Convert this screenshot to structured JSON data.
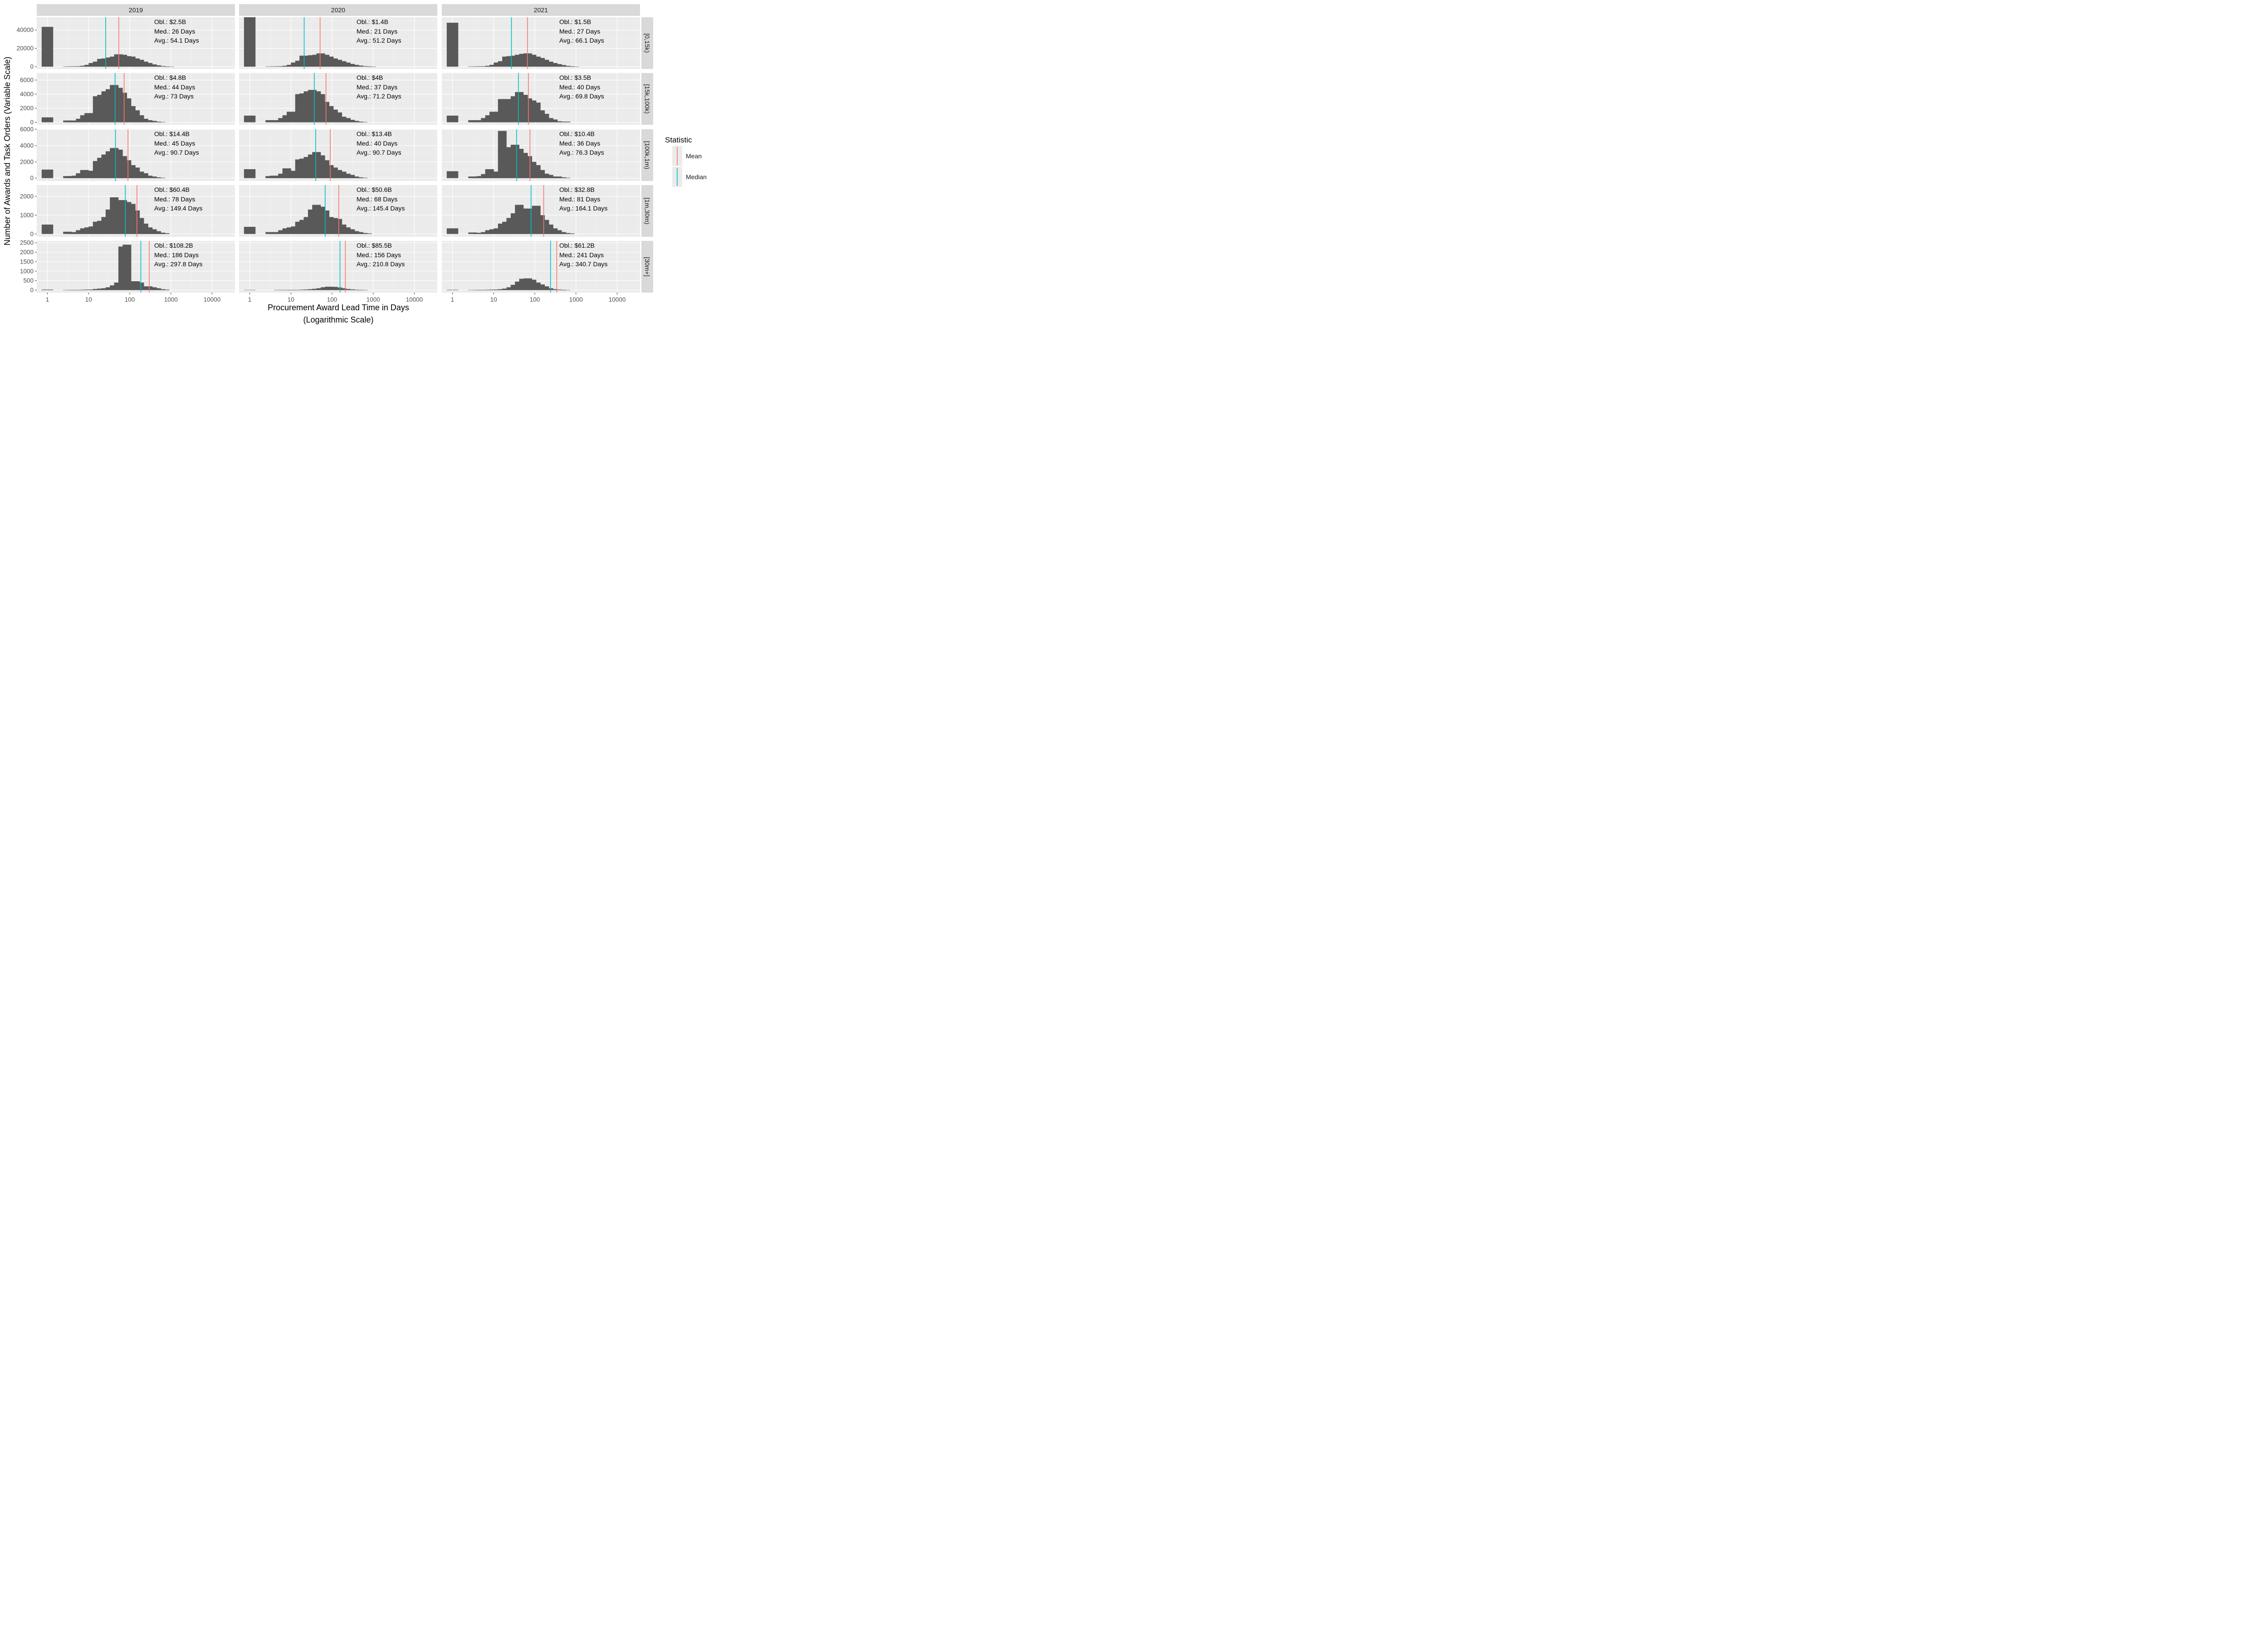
{
  "chart_data": {
    "type": "bar",
    "chart_subtype": "faceted-histogram",
    "x_scale": "log10",
    "xlabel": "Procurement Award Lead Time in Days",
    "xlabel_line2": "(Logarithmic Scale)",
    "ylabel": "Number of Awards and Task Orders (Variable Scale)",
    "xlim": [
      0.55,
      36000
    ],
    "x_ticks": [
      1,
      10,
      100,
      1000,
      10000
    ],
    "x_tick_labels": [
      "1",
      "10",
      "100",
      "1000",
      "10000"
    ],
    "columns": [
      "2019",
      "2020",
      "2021"
    ],
    "rows": [
      "[0,15k)",
      "[15k,100k)",
      "[100k,1m)",
      "[1m,30m)",
      "[30m+]"
    ],
    "bin_centers": [
      1,
      1.91,
      2.42,
      3.07,
      3.89,
      4.94,
      6.26,
      7.94,
      10.07,
      12.77,
      16.2,
      20.55,
      26.06,
      33.05,
      41.91,
      53.16,
      67.42,
      85.5,
      108.4,
      137.5,
      174.4,
      221.2,
      280.5,
      355.8,
      451.2,
      572.2,
      725.7,
      920.4,
      1167,
      1480,
      1877,
      2381,
      3020,
      3830,
      4857,
      6160,
      7813,
      9909
    ],
    "legend": {
      "title": "Statistic",
      "entries": [
        {
          "name": "Mean",
          "color": "#F8766D"
        },
        {
          "name": "Median",
          "color": "#00BFC4"
        }
      ],
      "position": "right"
    },
    "colors": {
      "bar": "#595959",
      "panel": "#EBEBEB",
      "strip": "#D9D9D9",
      "mean": "#F8766D",
      "median": "#00BFC4"
    },
    "row_axes": [
      {
        "ylim": [
          -2500,
          54000
        ],
        "ticks": [
          0,
          20000,
          40000
        ],
        "tick_labels": [
          "0",
          "20000",
          "40000"
        ]
      },
      {
        "ylim": [
          -350,
          7000
        ],
        "ticks": [
          0,
          2000,
          4000,
          6000
        ],
        "tick_labels": [
          "0",
          "2000",
          "4000",
          "6000"
        ]
      },
      {
        "ylim": [
          -350,
          6000
        ],
        "ticks": [
          0,
          2000,
          4000,
          6000
        ],
        "tick_labels": [
          "0",
          "2000",
          "4000",
          "6000"
        ]
      },
      {
        "ylim": [
          -150,
          2600
        ],
        "ticks": [
          0,
          1000,
          2000
        ],
        "tick_labels": [
          "0",
          "1000",
          "2000"
        ]
      },
      {
        "ylim": [
          -130,
          2600
        ],
        "ticks": [
          0,
          500,
          1000,
          1500,
          2000,
          2500
        ],
        "tick_labels": [
          "0",
          "500",
          "1000",
          "1500",
          "2000",
          "2500"
        ]
      }
    ],
    "panels": [
      {
        "column": "2019",
        "row": "[0,15k)",
        "obl": "Obl.: $2.5B",
        "med": "Med.: 26 Days",
        "avg": "Avg.: 54.1 Days",
        "median": 26,
        "mean": 54.1,
        "counts": [
          43500,
          0,
          0,
          200,
          300,
          400,
          500,
          1000,
          2000,
          4000,
          5500,
          8500,
          9000,
          10000,
          11000,
          13500,
          13000,
          11500,
          11000,
          9000,
          7500,
          5500,
          4000,
          2500,
          1500,
          700,
          300,
          100,
          0,
          0,
          0,
          0,
          0,
          0,
          0,
          0,
          0,
          0
        ]
      },
      {
        "column": "2020",
        "row": "[0,15k)",
        "obl": "Obl.: $1.4B",
        "med": "Med.: 21 Days",
        "avg": "Avg.: 51.2 Days",
        "median": 21,
        "mean": 51.2,
        "counts": [
          54000,
          0,
          0,
          200,
          300,
          400,
          500,
          1000,
          2000,
          4500,
          6500,
          12000,
          11500,
          12500,
          13000,
          14500,
          13000,
          11000,
          9000,
          7500,
          6000,
          4500,
          3000,
          2000,
          1200,
          600,
          300,
          100,
          0,
          0,
          0,
          0,
          0,
          0,
          0,
          0,
          0,
          0
        ]
      },
      {
        "column": "2021",
        "row": "[0,15k)",
        "obl": "Obl.: $1.5B",
        "med": "Med.: 27 Days",
        "avg": "Avg.: 66.1 Days",
        "median": 27,
        "mean": 66.1,
        "counts": [
          48000,
          0,
          0,
          200,
          300,
          400,
          500,
          1000,
          2000,
          4500,
          6000,
          11000,
          11500,
          12000,
          13000,
          14000,
          14500,
          13000,
          11000,
          9500,
          7500,
          5500,
          4000,
          2800,
          1800,
          900,
          400,
          150,
          0,
          0,
          0,
          0,
          0,
          0,
          0,
          0,
          0,
          0
        ]
      },
      {
        "column": "2019",
        "row": "[15k,100k)",
        "obl": "Obl.: $4.8B",
        "med": "Med.: 44 Days",
        "avg": "Avg.: 73 Days",
        "median": 44,
        "mean": 73,
        "counts": [
          700,
          0,
          0,
          250,
          250,
          200,
          500,
          1000,
          1300,
          1300,
          3700,
          3900,
          4400,
          4700,
          5300,
          4900,
          4200,
          3400,
          2300,
          1700,
          1000,
          500,
          300,
          200,
          100,
          50,
          0,
          0,
          0,
          0,
          0,
          0,
          0,
          0,
          0,
          0,
          0,
          0
        ]
      },
      {
        "column": "2020",
        "row": "[15k,100k)",
        "obl": "Obl.: $4B",
        "med": "Med.: 37 Days",
        "avg": "Avg.: 71.2 Days",
        "median": 37,
        "mean": 71.2,
        "counts": [
          950,
          0,
          0,
          300,
          300,
          200,
          600,
          1000,
          1500,
          1500,
          4000,
          4100,
          4400,
          4600,
          4400,
          4000,
          2900,
          2300,
          1800,
          1400,
          800,
          600,
          350,
          200,
          100,
          50,
          0,
          0,
          0,
          0,
          0,
          0,
          0,
          0,
          0,
          0,
          0,
          0
        ]
      },
      {
        "column": "2021",
        "row": "[15k,100k)",
        "obl": "Obl.: $3.5B",
        "med": "Med.: 40 Days",
        "avg": "Avg.: 69.8 Days",
        "median": 40,
        "mean": 69.8,
        "counts": [
          950,
          0,
          0,
          300,
          300,
          200,
          600,
          1000,
          1500,
          1500,
          3300,
          3300,
          3100,
          3700,
          4300,
          3900,
          3400,
          3100,
          2800,
          1700,
          1200,
          600,
          400,
          150,
          100,
          100,
          0,
          0,
          0,
          0,
          0,
          0,
          0,
          0,
          0,
          0,
          0,
          0
        ]
      },
      {
        "column": "2019",
        "row": "[100k,1m)",
        "obl": "Obl.: $14.4B",
        "med": "Med.: 45 Days",
        "avg": "Avg.: 90.7 Days",
        "median": 45,
        "mean": 90.7,
        "counts": [
          1050,
          0,
          0,
          250,
          250,
          300,
          600,
          1000,
          900,
          900,
          2100,
          2500,
          2900,
          3300,
          3700,
          3500,
          2700,
          2200,
          1600,
          1300,
          800,
          600,
          300,
          200,
          100,
          50,
          0,
          0,
          0,
          0,
          0,
          0,
          0,
          0,
          0,
          0,
          0,
          0
        ]
      },
      {
        "column": "2020",
        "row": "[100k,1m)",
        "obl": "Obl.: $13.4B",
        "med": "Med.: 40 Days",
        "avg": "Avg.: 90.7 Days",
        "median": 40,
        "mean": 90.7,
        "counts": [
          1100,
          0,
          0,
          250,
          300,
          300,
          550,
          1200,
          900,
          900,
          2300,
          2400,
          2600,
          2900,
          3200,
          2800,
          2200,
          1600,
          1300,
          1000,
          800,
          550,
          400,
          200,
          100,
          50,
          0,
          0,
          0,
          0,
          0,
          0,
          0,
          0,
          0,
          0,
          0,
          0
        ]
      },
      {
        "column": "2021",
        "row": "[100k,1m)",
        "obl": "Obl.: $10.4B",
        "med": "Med.: 36 Days",
        "avg": "Avg.: 76.3 Days",
        "median": 36,
        "mean": 76.3,
        "counts": [
          850,
          0,
          0,
          200,
          200,
          250,
          500,
          1100,
          800,
          800,
          5800,
          3400,
          3800,
          4100,
          3600,
          3100,
          2700,
          2000,
          1600,
          1000,
          550,
          400,
          200,
          200,
          100,
          50,
          0,
          0,
          0,
          0,
          0,
          0,
          0,
          0,
          0,
          0,
          0,
          0
        ]
      },
      {
        "column": "2019",
        "row": "[1m,30m)",
        "obl": "Obl.: $60.4B",
        "med": "Med.: 78 Days",
        "avg": "Avg.: 149.4 Days",
        "median": 78,
        "mean": 149.4,
        "counts": [
          500,
          0,
          0,
          120,
          80,
          100,
          200,
          300,
          350,
          400,
          650,
          700,
          900,
          1300,
          1950,
          1800,
          1800,
          1700,
          1600,
          1250,
          850,
          550,
          350,
          250,
          150,
          70,
          40,
          0,
          0,
          0,
          0,
          0,
          0,
          0,
          0,
          0,
          0,
          0
        ]
      },
      {
        "column": "2020",
        "row": "[1m,30m)",
        "obl": "Obl.: $50.6B",
        "med": "Med.: 68 Days",
        "avg": "Avg.: 145.4 Days",
        "median": 68,
        "mean": 145.4,
        "counts": [
          380,
          0,
          0,
          100,
          80,
          100,
          200,
          300,
          350,
          400,
          650,
          750,
          900,
          1300,
          1550,
          1450,
          1250,
          900,
          850,
          800,
          500,
          350,
          250,
          150,
          100,
          50,
          30,
          0,
          0,
          0,
          0,
          0,
          0,
          0,
          0,
          0,
          0,
          0
        ]
      },
      {
        "column": "2021",
        "row": "[1m,30m)",
        "obl": "Obl.: $32.8B",
        "med": "Med.: 81 Days",
        "avg": "Avg.: 164.1 Days",
        "median": 81,
        "mean": 164.1,
        "counts": [
          300,
          0,
          0,
          80,
          60,
          60,
          100,
          200,
          250,
          300,
          550,
          650,
          850,
          1100,
          1550,
          1350,
          1350,
          1300,
          1500,
          1000,
          750,
          500,
          300,
          200,
          100,
          50,
          30,
          0,
          0,
          0,
          0,
          0,
          0,
          0,
          0,
          0,
          0,
          0
        ]
      },
      {
        "column": "2019",
        "row": "[30m+]",
        "obl": "Obl.: $108.2B",
        "med": "Med.: 186 Days",
        "avg": "Avg.: 297.8 Days",
        "median": 186,
        "mean": 297.8,
        "counts": [
          30,
          0,
          0,
          5,
          5,
          10,
          10,
          20,
          30,
          30,
          60,
          80,
          100,
          150,
          250,
          400,
          2300,
          2400,
          450,
          470,
          400,
          150,
          200,
          150,
          100,
          50,
          30,
          0,
          0,
          0,
          0,
          0,
          0,
          0,
          0,
          0,
          0,
          0
        ]
      },
      {
        "column": "2020",
        "row": "[30m+]",
        "obl": "Obl.: $85.5B",
        "med": "Med.: 156 Days",
        "avg": "Avg.: 210.8 Days",
        "median": 156,
        "mean": 210.8,
        "counts": [
          10,
          0,
          0,
          0,
          0,
          5,
          5,
          5,
          10,
          10,
          15,
          25,
          35,
          50,
          70,
          100,
          150,
          180,
          170,
          140,
          100,
          60,
          40,
          20,
          10,
          5,
          0,
          0,
          0,
          0,
          0,
          0,
          0,
          0,
          0,
          0,
          0,
          0
        ]
      },
      {
        "column": "2021",
        "row": "[30m+]",
        "obl": "Obl.: $61.2B",
        "med": "Med.: 241 Days",
        "avg": "Avg.: 340.7 Days",
        "median": 241,
        "mean": 340.7,
        "counts": [
          20,
          0,
          0,
          5,
          5,
          10,
          10,
          20,
          30,
          30,
          50,
          80,
          150,
          280,
          450,
          600,
          620,
          550,
          400,
          300,
          200,
          100,
          50,
          30,
          15,
          5,
          0,
          0,
          0,
          0,
          0,
          0,
          0,
          0,
          0,
          0,
          0,
          0
        ]
      }
    ]
  }
}
